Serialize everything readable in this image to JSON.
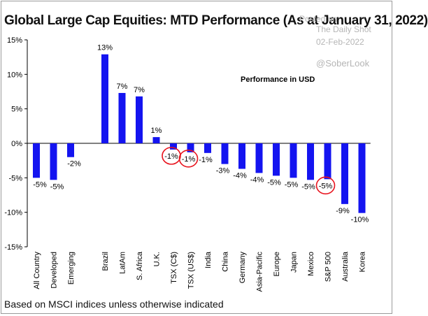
{
  "title": "Global Large Cap Equities: MTD Performance (As at January 31, 2022)",
  "watermark": {
    "posted": "Posted on",
    "source": "The Daily Shot",
    "date": "02-Feb-2022",
    "handle": "@SoberLook"
  },
  "footnote": "Based on MSCI indices unless otherwise indicated",
  "colors": {
    "bar": "#1414f0",
    "highlight": "#e8141e",
    "axis": "#000000"
  },
  "chart_data": {
    "type": "bar",
    "title": "Global Large Cap Equities: MTD Performance (As at January 31, 2022)",
    "annotation": "Performance in USD",
    "categories": [
      "All Country",
      "Developed",
      "Emerging",
      "",
      "Brazil",
      "LatAm",
      "S. Africa",
      "U.K.",
      "TSX (C$)",
      "TSX (US$)",
      "India",
      "China",
      "Germany",
      "Asia-Pacific",
      "Europe",
      "Japan",
      "Mexico",
      "S&P 500",
      "Australia",
      "Korea"
    ],
    "values": [
      -5.0,
      -5.3,
      -2.0,
      null,
      12.9,
      7.3,
      6.8,
      0.9,
      -0.9,
      -1.3,
      -1.4,
      -3.0,
      -3.7,
      -4.3,
      -4.7,
      -5.0,
      -5.3,
      -5.2,
      -8.8,
      -10.1
    ],
    "labels": [
      "-5%",
      "-5%",
      "-2%",
      "",
      "13%",
      "7%",
      "7%",
      "1%",
      "-1%",
      "-1%",
      "-1%",
      "-3%",
      "-4%",
      "-4%",
      "-5%",
      "-5%",
      "-5%",
      "-5%",
      "-9%",
      "-10%"
    ],
    "highlighted": [
      "TSX (C$)",
      "TSX (US$)",
      "S&P 500"
    ],
    "ylim": [
      -15,
      15
    ],
    "yticks": [
      -15,
      -10,
      -5,
      0,
      5,
      10,
      15
    ],
    "ytick_labels": [
      "-15%",
      "-10%",
      "-5%",
      "0%",
      "5%",
      "10%",
      "15%"
    ],
    "xlabel": "",
    "ylabel": "",
    "grid": false,
    "legend": "none"
  }
}
